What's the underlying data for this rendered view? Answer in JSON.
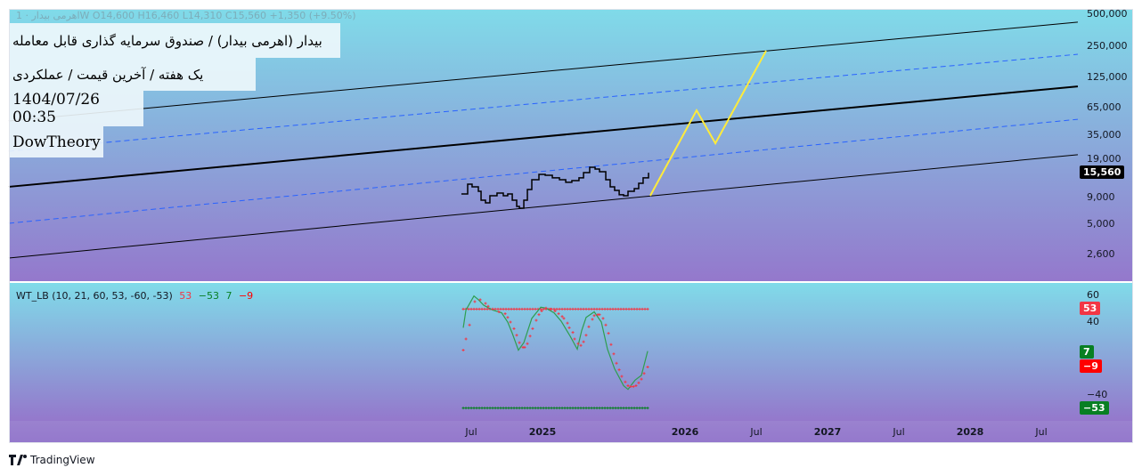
{
  "header": {
    "ohlc": "اهرمی بیدار · 1W  O14,600  H16,460  L14,310  C15,560  +1,350 (+9.50%)"
  },
  "labels": {
    "title": "بیدار (اهرمی بیدار) / صندوق سرمایه گذاری قابل معامله",
    "subtitle": "یک هفته / آخرین قیمت / عملکردی",
    "datetime": "1404/07/26 00:35",
    "author": "DowTheory"
  },
  "price_axis": {
    "scale": "log",
    "ticks": [
      "500,000",
      "250,000",
      "125,000",
      "65,000",
      "35,000",
      "19,000",
      "9,000",
      "5,000",
      "2,600"
    ],
    "tick_values": [
      500000,
      250000,
      125000,
      65000,
      35000,
      19000,
      9000,
      5000,
      2600
    ],
    "last_price": "15,560",
    "last_price_value": 15560
  },
  "osc": {
    "legend": {
      "name": "WT_LB (10, 21, 60, 53, -60, -53)",
      "v1": "53",
      "v2": "−53",
      "v3": "7",
      "v4": "−9"
    },
    "ticks": [
      "60",
      "40",
      "−40"
    ],
    "tick_values": [
      60,
      40,
      -40
    ],
    "badges": [
      {
        "text": "53",
        "value": 53,
        "color": "#f23645"
      },
      {
        "text": "7",
        "value": 7,
        "color": "#087f23"
      },
      {
        "text": "−9",
        "value": -9,
        "color": "#ff0000"
      },
      {
        "text": "−53",
        "value": -53,
        "color": "#087f23"
      }
    ]
  },
  "time_axis": [
    {
      "text": "Jul",
      "t": 2024.5,
      "bold": false
    },
    {
      "text": "2025",
      "t": 2025,
      "bold": true
    },
    {
      "text": "2026",
      "t": 2026,
      "bold": true
    },
    {
      "text": "Jul",
      "t": 2026.5,
      "bold": false
    },
    {
      "text": "2027",
      "t": 2027,
      "bold": true
    },
    {
      "text": "Jul",
      "t": 2027.5,
      "bold": false
    },
    {
      "text": "2028",
      "t": 2028,
      "bold": true
    },
    {
      "text": "Jul",
      "t": 2028.5,
      "bold": false
    }
  ],
  "footer": {
    "brand": "TradingView"
  },
  "colors": {
    "price": "#000000",
    "projection": "#ffeb3b",
    "channel_solid": "#000000",
    "channel_dashed": "#2962ff",
    "wt1": "#2e9e4f",
    "wt2": "#f23645",
    "ob": "#f23645",
    "os": "#087f23"
  },
  "chart_data": {
    "type": "line",
    "price": [
      [
        2024.431,
        9770
      ],
      [
        2024.475,
        12100
      ],
      [
        2024.506,
        11420
      ],
      [
        2024.55,
        10360
      ],
      [
        2024.569,
        8530
      ],
      [
        2024.6,
        8040
      ],
      [
        2024.631,
        9400
      ],
      [
        2024.681,
        9960
      ],
      [
        2024.725,
        9400
      ],
      [
        2024.756,
        9770
      ],
      [
        2024.788,
        8530
      ],
      [
        2024.819,
        7430
      ],
      [
        2024.838,
        7150
      ],
      [
        2024.869,
        8530
      ],
      [
        2024.894,
        10760
      ],
      [
        2024.925,
        13330
      ],
      [
        2024.975,
        15000
      ],
      [
        2025.019,
        14720
      ],
      [
        2025.069,
        13890
      ],
      [
        2025.119,
        13330
      ],
      [
        2025.163,
        12600
      ],
      [
        2025.206,
        13100
      ],
      [
        2025.256,
        13890
      ],
      [
        2025.288,
        15600
      ],
      [
        2025.331,
        17540
      ],
      [
        2025.369,
        16870
      ],
      [
        2025.4,
        15890
      ],
      [
        2025.444,
        13330
      ],
      [
        2025.475,
        11420
      ],
      [
        2025.506,
        10570
      ],
      [
        2025.538,
        9600
      ],
      [
        2025.569,
        9400
      ],
      [
        2025.6,
        10360
      ],
      [
        2025.644,
        10990
      ],
      [
        2025.675,
        12350
      ],
      [
        2025.706,
        13890
      ],
      [
        2025.744,
        15560
      ]
    ],
    "projection": [
      [
        2025.756,
        9400
      ],
      [
        2026.081,
        60950
      ],
      [
        2026.213,
        29600
      ],
      [
        2026.569,
        225000
      ]
    ],
    "channels": [
      {
        "style": "solid",
        "points": [
          [
            2021.256,
            48300
          ],
          [
            2028.756,
            420000
          ]
        ]
      },
      {
        "style": "dashed",
        "points": [
          [
            2021.256,
            24900
          ],
          [
            2028.756,
            208000
          ]
        ]
      },
      {
        "style": "solid",
        "points": [
          [
            2021.256,
            11430
          ],
          [
            2028.756,
            103000
          ]
        ]
      },
      {
        "style": "dashed",
        "points": [
          [
            2021.256,
            5140
          ],
          [
            2028.756,
            50100
          ]
        ]
      },
      {
        "style": "solid",
        "points": [
          [
            2021.256,
            2405
          ],
          [
            2028.756,
            23100
          ]
        ]
      }
    ],
    "wt1": [
      [
        2024.444,
        33
      ],
      [
        2024.463,
        52
      ],
      [
        2024.519,
        67
      ],
      [
        2024.55,
        63
      ],
      [
        2024.588,
        57
      ],
      [
        2024.65,
        52
      ],
      [
        2024.713,
        49
      ],
      [
        2024.756,
        39
      ],
      [
        2024.788,
        27
      ],
      [
        2024.831,
        9
      ],
      [
        2024.869,
        17
      ],
      [
        2024.925,
        43
      ],
      [
        2024.988,
        55
      ],
      [
        2025.025,
        54
      ],
      [
        2025.081,
        49
      ],
      [
        2025.131,
        40
      ],
      [
        2025.194,
        24
      ],
      [
        2025.244,
        10
      ],
      [
        2025.275,
        30
      ],
      [
        2025.306,
        44
      ],
      [
        2025.363,
        50
      ],
      [
        2025.413,
        39
      ],
      [
        2025.456,
        10
      ],
      [
        2025.506,
        -11
      ],
      [
        2025.569,
        -29
      ],
      [
        2025.6,
        -33
      ],
      [
        2025.65,
        -23
      ],
      [
        2025.694,
        -18
      ],
      [
        2025.738,
        8
      ]
    ],
    "wt2": [
      [
        2024.444,
        9
      ],
      [
        2024.463,
        21
      ],
      [
        2024.488,
        36
      ],
      [
        2024.525,
        61
      ],
      [
        2024.563,
        63
      ],
      [
        2024.6,
        59
      ],
      [
        2024.619,
        56
      ],
      [
        2024.65,
        53
      ],
      [
        2024.694,
        50
      ],
      [
        2024.738,
        48
      ],
      [
        2024.756,
        44
      ],
      [
        2024.775,
        39
      ],
      [
        2024.8,
        32
      ],
      [
        2024.819,
        25
      ],
      [
        2024.838,
        17
      ],
      [
        2024.863,
        12
      ],
      [
        2024.875,
        12
      ],
      [
        2024.894,
        16
      ],
      [
        2024.913,
        24
      ],
      [
        2024.931,
        32
      ],
      [
        2024.956,
        41
      ],
      [
        2024.975,
        47
      ],
      [
        2024.994,
        51
      ],
      [
        2025.025,
        54
      ],
      [
        2025.056,
        53
      ],
      [
        2025.088,
        51
      ],
      [
        2025.113,
        48
      ],
      [
        2025.138,
        45
      ],
      [
        2025.15,
        43
      ],
      [
        2025.175,
        38
      ],
      [
        2025.188,
        33
      ],
      [
        2025.213,
        28
      ],
      [
        2025.225,
        21
      ],
      [
        2025.25,
        16
      ],
      [
        2025.269,
        14
      ],
      [
        2025.288,
        18
      ],
      [
        2025.306,
        25
      ],
      [
        2025.325,
        34
      ],
      [
        2025.35,
        42
      ],
      [
        2025.363,
        46
      ],
      [
        2025.388,
        47
      ],
      [
        2025.4,
        47
      ],
      [
        2025.425,
        43
      ],
      [
        2025.444,
        36
      ],
      [
        2025.463,
        27
      ],
      [
        2025.481,
        15
      ],
      [
        2025.5,
        5
      ],
      [
        2025.519,
        -5
      ],
      [
        2025.538,
        -12
      ],
      [
        2025.556,
        -19
      ],
      [
        2025.581,
        -25
      ],
      [
        2025.6,
        -29
      ],
      [
        2025.619,
        -30
      ],
      [
        2025.638,
        -30
      ],
      [
        2025.656,
        -29
      ],
      [
        2025.675,
        -26
      ],
      [
        2025.694,
        -22
      ],
      [
        2025.713,
        -16
      ],
      [
        2025.738,
        -9
      ]
    ],
    "levels": {
      "ob": 53,
      "os": -53,
      "range": [
        2024.444,
        2025.738
      ]
    }
  }
}
